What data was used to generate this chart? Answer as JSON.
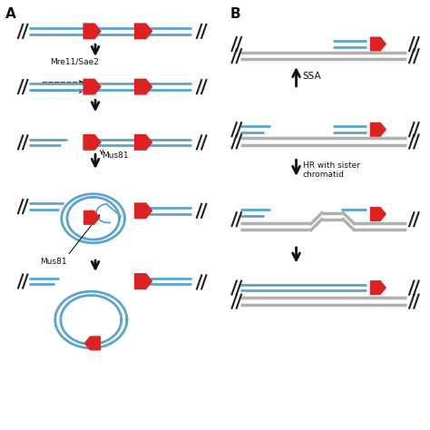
{
  "fig_width": 4.74,
  "fig_height": 4.74,
  "dpi": 100,
  "bg_color": "#ffffff",
  "blue_color": "#5ba3d0",
  "red_color": "#dd2222",
  "gray_color": "#b0b0b0",
  "black_color": "#111111",
  "lw_dna": 2.0,
  "lw_gray": 2.5,
  "label_A": "A",
  "label_B": "B",
  "label_mre11": "Mre11/Sae2",
  "label_mus81_1": "Mus81",
  "label_mus81_2": "Mus81",
  "label_ssa": "SSA",
  "label_hr": "HR with sister\nchromatid"
}
